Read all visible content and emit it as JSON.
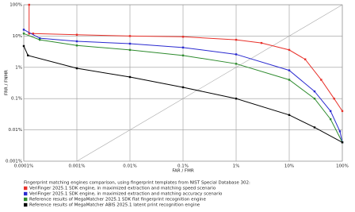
{
  "chart_data": {
    "type": "line",
    "xlabel": "FAR / FMR",
    "ylabel": "FRR / FNMR",
    "log_x": true,
    "log_y": true,
    "grid": true,
    "diagonal": true,
    "xlim": [
      0.0001,
      100
    ],
    "ylim": [
      0.001,
      100
    ],
    "xticks": [
      {
        "value": 0.0001,
        "label": "0.0001%"
      },
      {
        "value": 0.001,
        "label": "0.001%"
      },
      {
        "value": 0.01,
        "label": "0.01%"
      },
      {
        "value": 0.1,
        "label": "0.1%"
      },
      {
        "value": 1,
        "label": "1%"
      },
      {
        "value": 10,
        "label": "10%"
      },
      {
        "value": 100,
        "label": "100%"
      }
    ],
    "yticks": [
      {
        "value": 0.001,
        "label": "0.001%"
      },
      {
        "value": 0.01,
        "label": "0.01%"
      },
      {
        "value": 0.1,
        "label": "0.1%"
      },
      {
        "value": 1,
        "label": "1%"
      },
      {
        "value": 10,
        "label": "10%"
      },
      {
        "value": 100,
        "label": "100%"
      }
    ],
    "legend_title": "Fingerprint matching engines comparison, using fingerprint templates from NIST Special Database 302:",
    "series": [
      {
        "name": "VeriFinger 2025.1 SDK engine, in maximized extraction and matching speed scenario",
        "color": "#e8312a",
        "x": [
          0.000126,
          0.000126,
          0.00015,
          0.001,
          0.01,
          0.1,
          1,
          3,
          10,
          20,
          40,
          70,
          100
        ],
        "values": [
          100,
          12,
          12,
          11,
          10,
          9.5,
          7.6,
          6,
          3.6,
          1.8,
          0.4,
          0.1,
          0.04
        ]
      },
      {
        "name": "VeriFinger 2025.1 SDK engine, in maximized extraction and matching accuracy scenario",
        "color": "#2a2ad0",
        "x": [
          0.0001,
          0.0002,
          0.001,
          0.01,
          0.1,
          1,
          10,
          30,
          60,
          90,
          100
        ],
        "values": [
          16,
          8.5,
          6.8,
          5.7,
          4.3,
          2.6,
          0.8,
          0.17,
          0.04,
          0.009,
          0.004
        ]
      },
      {
        "name": "Reference results of MegaMatcher 2025.1 SDK flat fingerprint recognition engine",
        "color": "#2e8b2e",
        "x": [
          0.0001,
          0.0002,
          0.001,
          0.01,
          0.1,
          1,
          10,
          30,
          60,
          100
        ],
        "values": [
          12,
          7.6,
          5,
          3.6,
          2.4,
          1.3,
          0.4,
          0.1,
          0.022,
          0.004
        ]
      },
      {
        "name": "Reference results of MegaMatcher ABIS 2025.1 latent print recognition engine",
        "color": "#000000",
        "x": [
          0.0001,
          0.00012,
          0.001,
          0.01,
          0.1,
          1,
          10,
          30,
          100
        ],
        "values": [
          4.8,
          2.4,
          0.93,
          0.49,
          0.23,
          0.1,
          0.03,
          0.012,
          0.004
        ]
      }
    ]
  }
}
